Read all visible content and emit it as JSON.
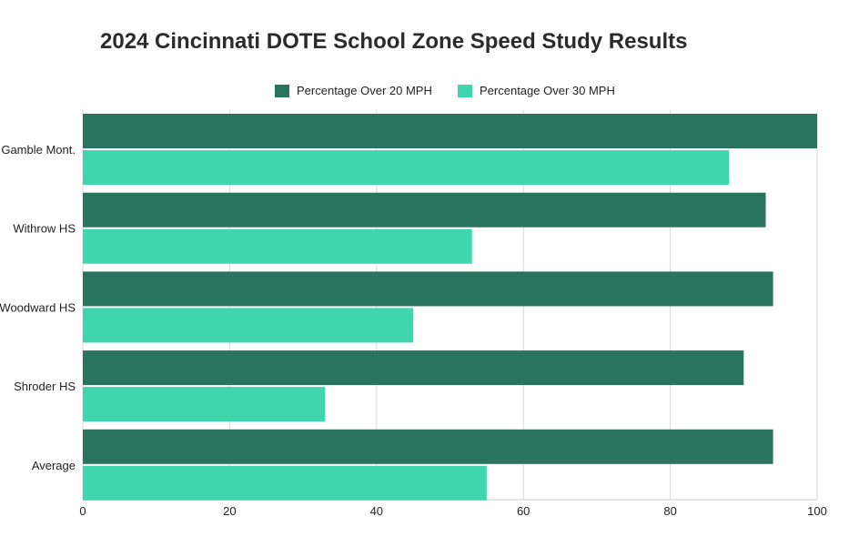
{
  "chart_data": {
    "type": "bar",
    "orientation": "horizontal",
    "title": "2024 Cincinnati DOTE School Zone Speed Study Results",
    "categories": [
      "Gamble Mont.",
      "Withrow HS",
      "Woodward HS",
      "Shroder HS",
      "Average"
    ],
    "series": [
      {
        "name": "Percentage Over 20 MPH",
        "color": "#2a735e",
        "values": [
          100,
          93,
          94,
          90,
          94
        ]
      },
      {
        "name": "Percentage Over 30 MPH",
        "color": "#40d6ad",
        "values": [
          88,
          53,
          45,
          33,
          55
        ]
      }
    ],
    "xlim": [
      0,
      100
    ],
    "xticks": [
      0,
      20,
      40,
      60,
      80,
      100
    ],
    "xlabel": "",
    "ylabel": "",
    "grid": true,
    "legend_position": "top"
  }
}
